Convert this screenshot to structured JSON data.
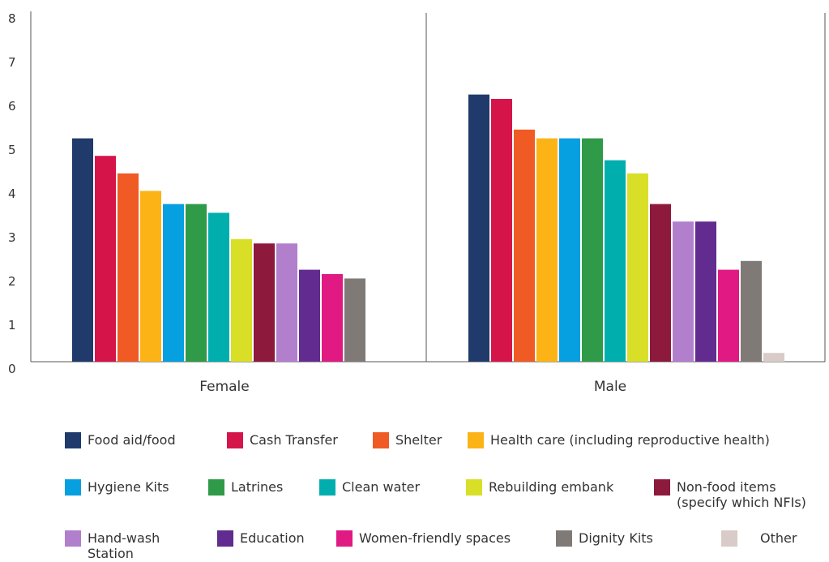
{
  "chart_data": {
    "type": "bar",
    "title": "",
    "xlabel": "",
    "ylabel": "",
    "ylim": [
      0,
      8
    ],
    "yticks": [
      0,
      1,
      2,
      3,
      4,
      5,
      6,
      7,
      8
    ],
    "categories": [
      "Female",
      "Male"
    ],
    "grid": false,
    "legend_position": "bottom",
    "series": [
      {
        "name": "Food aid/food",
        "color": "#1f3a6b",
        "values": [
          5.1,
          6.1
        ]
      },
      {
        "name": "Cash Transfer",
        "color": "#d5154a",
        "values": [
          4.7,
          6.0
        ]
      },
      {
        "name": "Shelter",
        "color": "#f05a24",
        "values": [
          4.3,
          5.3
        ]
      },
      {
        "name": "Health care (including reproductive health)",
        "color": "#fbb316",
        "values": [
          3.9,
          5.1
        ]
      },
      {
        "name": "Hygiene Kits",
        "color": "#069fdf",
        "values": [
          3.6,
          5.1
        ]
      },
      {
        "name": "Latrines",
        "color": "#2f9a48",
        "values": [
          3.6,
          5.1
        ]
      },
      {
        "name": "Clean water",
        "color": "#00aeae",
        "values": [
          3.4,
          4.6
        ]
      },
      {
        "name": "Rebuilding embank",
        "color": "#d9df26",
        "values": [
          2.8,
          4.3
        ]
      },
      {
        "name": "Non-food items\n(specify which NFIs)",
        "color": "#8d1a3c",
        "values": [
          2.7,
          3.6
        ]
      },
      {
        "name": "Hand-wash\nStation",
        "color": "#b17fcb",
        "values": [
          2.7,
          3.2
        ]
      },
      {
        "name": "Education",
        "color": "#622b8f",
        "values": [
          2.1,
          3.2
        ]
      },
      {
        "name": "Women-friendly spaces",
        "color": "#e01a82",
        "values": [
          2.0,
          2.1
        ]
      },
      {
        "name": "Dignity Kits",
        "color": "#807a77",
        "values": [
          1.9,
          2.3
        ]
      },
      {
        "name": "Other",
        "color": "#d9ccc8",
        "values": [
          0,
          0.2
        ]
      }
    ]
  }
}
